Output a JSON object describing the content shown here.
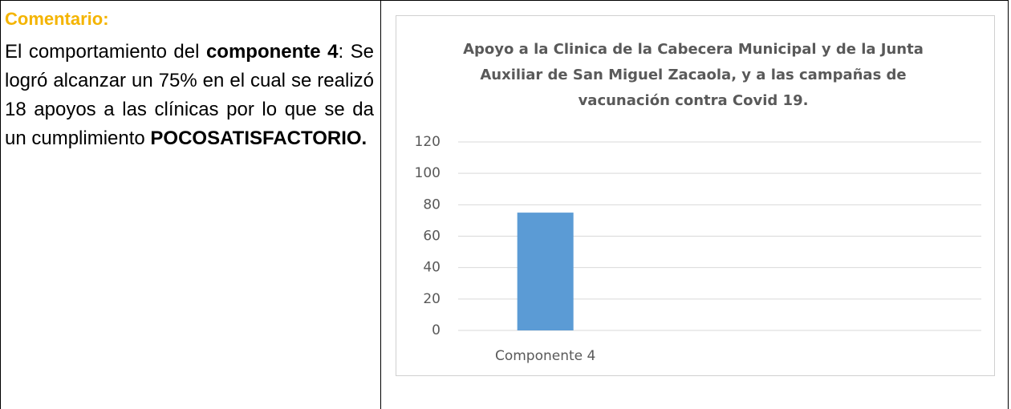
{
  "comment": {
    "heading": "Comentario:",
    "paragraph": [
      {
        "text": "El comportamiento del ",
        "bold": false
      },
      {
        "text": "componente 4",
        "bold": true
      },
      {
        "text": ": Se logró alcanzar un 75% en el cual se realizó 18 apoyos a las clínicas por lo que se da un cumplimiento ",
        "bold": false
      },
      {
        "text": "POCOSATISFACTORIO.",
        "bold": true
      }
    ]
  },
  "chart_data": {
    "type": "bar",
    "title": "Apoyo a la Clinica de la Cabecera Municipal y de la Junta Auxiliar de San Miguel Zacaola, y a las campañas de vacunación contra Covid 19.",
    "categories": [
      "Componente 4",
      null,
      null
    ],
    "values": [
      75,
      null,
      null
    ],
    "color": "#5b9bd5",
    "ylim": [
      0,
      120
    ],
    "yticks": [
      0,
      20,
      40,
      60,
      80,
      100,
      120
    ],
    "grid": true
  }
}
